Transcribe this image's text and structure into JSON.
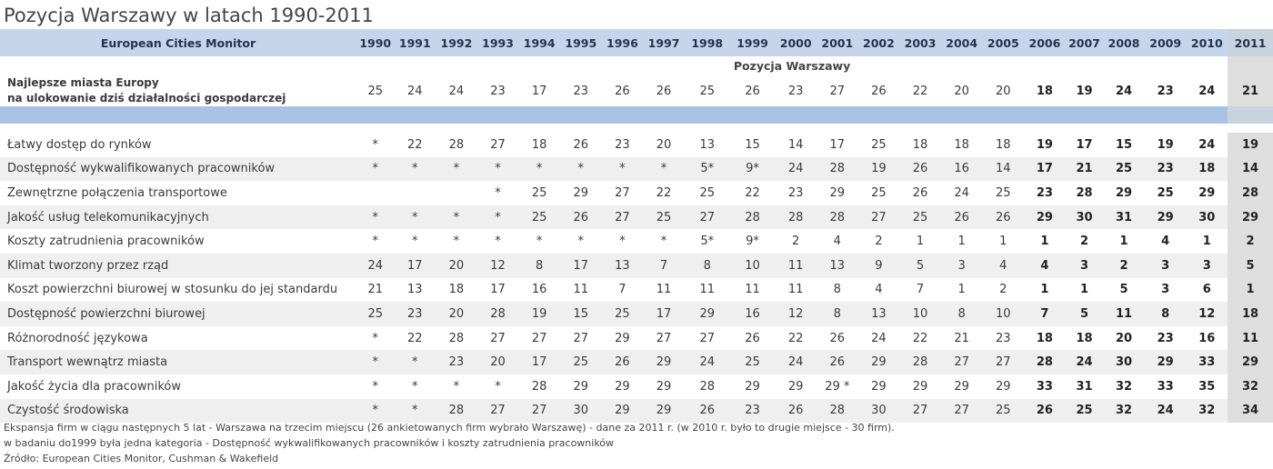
{
  "title": "Pozycja Warszawy w latach 1990-2011",
  "table": {
    "header_label": "European Cities Monitor",
    "years": [
      "1990",
      "1991",
      "1992",
      "1993",
      "1994",
      "1995",
      "1996",
      "1997",
      "1998",
      "1999",
      "2000",
      "2001",
      "2002",
      "2003",
      "2004",
      "2005",
      "2006",
      "2007",
      "2008",
      "2009",
      "2010",
      "2011"
    ],
    "position_label": "Pozycja Warszawy",
    "best_label_line1": "Najlepsze miasta Europy",
    "best_label_line2": "na ulokowanie dziś działalności gospodarczej",
    "best_values": [
      "25",
      "24",
      "24",
      "23",
      "17",
      "23",
      "26",
      "26",
      "25",
      "26",
      "23",
      "27",
      "26",
      "22",
      "20",
      "20",
      "18",
      "19",
      "24",
      "23",
      "24",
      "21"
    ],
    "rows": [
      {
        "label": "Łatwy dostęp do rynków",
        "values": [
          "*",
          "22",
          "28",
          "27",
          "18",
          "26",
          "23",
          "20",
          "13",
          "15",
          "14",
          "17",
          "25",
          "18",
          "18",
          "18",
          "19",
          "17",
          "15",
          "19",
          "24",
          "19"
        ]
      },
      {
        "label": "Dostępność wykwalifikowanych pracowników",
        "values": [
          "*",
          "*",
          "*",
          "*",
          "*",
          "*",
          "*",
          "*",
          "5*",
          "9*",
          "24",
          "28",
          "19",
          "26",
          "16",
          "14",
          "17",
          "21",
          "25",
          "23",
          "18",
          "14"
        ]
      },
      {
        "label": "Zewnętrzne połączenia transportowe",
        "values": [
          "",
          "",
          "",
          "*",
          "25",
          "29",
          "27",
          "22",
          "25",
          "22",
          "23",
          "29",
          "25",
          "26",
          "24",
          "25",
          "23",
          "28",
          "29",
          "25",
          "29",
          "28"
        ]
      },
      {
        "label": "Jakość usług telekomunikacyjnych",
        "values": [
          "*",
          "*",
          "*",
          "*",
          "25",
          "26",
          "27",
          "25",
          "27",
          "28",
          "28",
          "28",
          "27",
          "25",
          "26",
          "26",
          "29",
          "30",
          "31",
          "29",
          "30",
          "29"
        ]
      },
      {
        "label": "Koszty zatrudnienia pracowników",
        "values": [
          "*",
          "*",
          "*",
          "*",
          "*",
          "*",
          "*",
          "*",
          "5*",
          "9*",
          "2",
          "4",
          "2",
          "1",
          "1",
          "1",
          "1",
          "2",
          "1",
          "4",
          "1",
          "2"
        ]
      },
      {
        "label": "Klimat tworzony przez rząd",
        "values": [
          "24",
          "17",
          "20",
          "12",
          "8",
          "17",
          "13",
          "7",
          "8",
          "10",
          "11",
          "13",
          "9",
          "5",
          "3",
          "4",
          "4",
          "3",
          "2",
          "3",
          "3",
          "5"
        ]
      },
      {
        "label": "Koszt powierzchni biurowej w stosunku do jej standardu",
        "values": [
          "21",
          "13",
          "18",
          "17",
          "16",
          "11",
          "7",
          "11",
          "11",
          "11",
          "11",
          "8",
          "4",
          "7",
          "1",
          "2",
          "1",
          "1",
          "5",
          "3",
          "6",
          "1"
        ]
      },
      {
        "label": "Dostępność powierzchni biurowej",
        "values": [
          "25",
          "23",
          "20",
          "28",
          "19",
          "15",
          "25",
          "17",
          "29",
          "16",
          "12",
          "8",
          "13",
          "10",
          "8",
          "10",
          "7",
          "5",
          "11",
          "8",
          "12",
          "18"
        ]
      },
      {
        "label": "Różnorodność językowa",
        "values": [
          "*",
          "22",
          "28",
          "27",
          "27",
          "27",
          "29",
          "27",
          "27",
          "26",
          "22",
          "26",
          "24",
          "22",
          "21",
          "23",
          "18",
          "18",
          "20",
          "23",
          "16",
          "11"
        ]
      },
      {
        "label": "Transport wewnątrz miasta",
        "values": [
          "*",
          "*",
          "23",
          "20",
          "17",
          "25",
          "26",
          "29",
          "24",
          "25",
          "24",
          "26",
          "29",
          "28",
          "27",
          "27",
          "28",
          "24",
          "30",
          "29",
          "33",
          "29"
        ]
      },
      {
        "label": "Jakość życia dla pracowników",
        "values": [
          "*",
          "*",
          "*",
          "*",
          "28",
          "29",
          "29",
          "29",
          "28",
          "29",
          "29",
          "29 *",
          "29",
          "29",
          "29",
          "29",
          "33",
          "31",
          "32",
          "33",
          "35",
          "32"
        ]
      },
      {
        "label": "Czystość środowiska",
        "values": [
          "*",
          "*",
          "28",
          "27",
          "27",
          "30",
          "29",
          "29",
          "26",
          "23",
          "26",
          "28",
          "30",
          "27",
          "27",
          "25",
          "26",
          "25",
          "32",
          "24",
          "32",
          "34"
        ]
      }
    ]
  },
  "footnotes": [
    "Ekspansja firm w ciągu następnych 5 lat - Warszawa na trzecim miejscu (26 ankietowanych firm wybrało Warszawę) - dane za 2011 r. (w 2010 r. było to drugie miejsce - 30 firm).",
    "w badaniu do1999 była jedna kategoria - Dostępność wykwalifikowanych pracowników i koszty zatrudnienia pracowników",
    "Źródło: European Cities Monitor, Cushman & Wakefield"
  ]
}
